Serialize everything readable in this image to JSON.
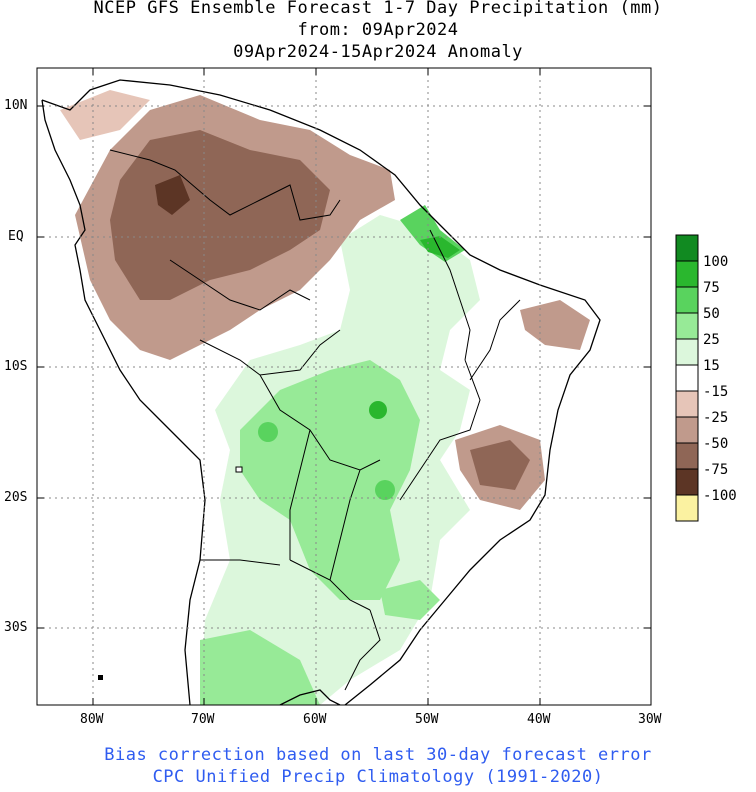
{
  "title": {
    "line1": "NCEP GFS Ensemble Forecast 1-7 Day Precipitation (mm)",
    "line2": "from: 09Apr2024",
    "line3": "09Apr2024-15Apr2024 Anomaly"
  },
  "axes": {
    "lat_labels": [
      "10N",
      "EQ",
      "10S",
      "20S",
      "30S"
    ],
    "lon_labels": [
      "80W",
      "70W",
      "60W",
      "50W",
      "40W",
      "30W"
    ],
    "lat_range": [
      -35,
      13
    ],
    "lon_range": [
      -85,
      -30
    ],
    "grid": true
  },
  "legend": {
    "labels": [
      "100",
      "75",
      "50",
      "25",
      "15",
      "-15",
      "-25",
      "-50",
      "-75",
      "-100"
    ],
    "colors": [
      "#118a21",
      "#2ab72e",
      "#59d35e",
      "#97ea97",
      "#dcf7dc",
      "#ffffff",
      "#e6c5b8",
      "#c09a8c",
      "#8f6656",
      "#5c3525",
      "#fbf2a1"
    ]
  },
  "footer": {
    "line1": "Bias correction based on last 30-day forecast error",
    "line2": "CPC Unified Precip Climatology (1991-2020)"
  }
}
